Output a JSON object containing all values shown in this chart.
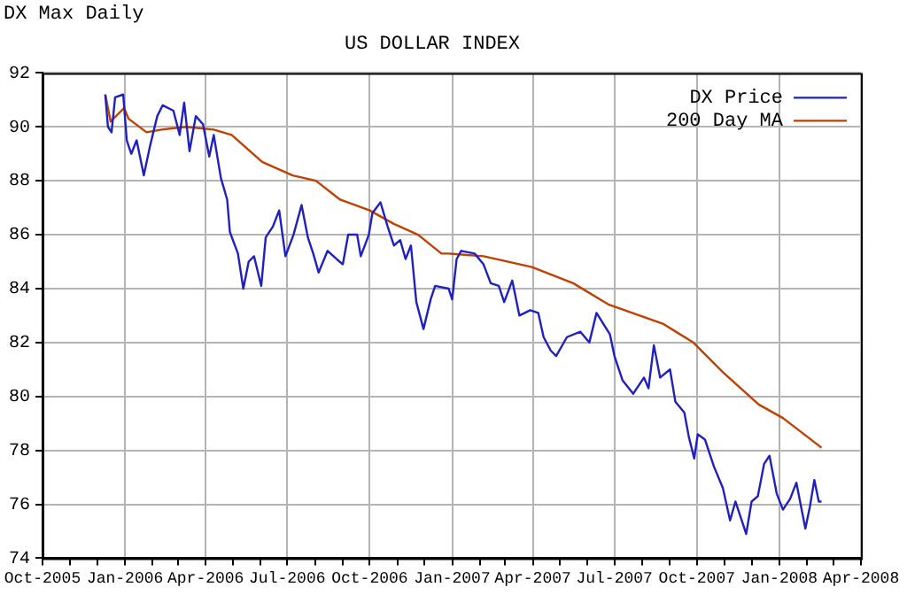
{
  "chart_data": {
    "type": "line",
    "title": "US DOLLAR INDEX",
    "annotations": [
      "DX Max Daily"
    ],
    "xlim": [
      "2005-10",
      "2008-04"
    ],
    "xticks": [
      {
        "value": "2005-10",
        "label": "Oct-2005"
      },
      {
        "value": "2005-11",
        "label": null
      },
      {
        "value": "2005-12",
        "label": null
      },
      {
        "value": "2006-01",
        "label": "Jan-2006"
      },
      {
        "value": "2006-02",
        "label": null
      },
      {
        "value": "2006-03",
        "label": null
      },
      {
        "value": "2006-04",
        "label": "Apr-2006"
      },
      {
        "value": "2006-05",
        "label": null
      },
      {
        "value": "2006-06",
        "label": null
      },
      {
        "value": "2006-07",
        "label": "Jul-2006"
      },
      {
        "value": "2006-08",
        "label": null
      },
      {
        "value": "2006-09",
        "label": null
      },
      {
        "value": "2006-10",
        "label": "Oct-2006"
      },
      {
        "value": "2006-11",
        "label": null
      },
      {
        "value": "2006-12",
        "label": null
      },
      {
        "value": "2007-01",
        "label": "Jan-2007"
      },
      {
        "value": "2007-02",
        "label": null
      },
      {
        "value": "2007-03",
        "label": null
      },
      {
        "value": "2007-04",
        "label": "Apr-2007"
      },
      {
        "value": "2007-05",
        "label": null
      },
      {
        "value": "2007-06",
        "label": null
      },
      {
        "value": "2007-07",
        "label": "Jul-2007"
      },
      {
        "value": "2007-08",
        "label": null
      },
      {
        "value": "2007-09",
        "label": null
      },
      {
        "value": "2007-10",
        "label": "Oct-2007"
      },
      {
        "value": "2007-11",
        "label": null
      },
      {
        "value": "2007-12",
        "label": null
      },
      {
        "value": "2008-01",
        "label": "Jan-2008"
      },
      {
        "value": "2008-02",
        "label": null
      },
      {
        "value": "2008-03",
        "label": null
      },
      {
        "value": "2008-04",
        "label": "Apr-2008"
      }
    ],
    "ylim": [
      74,
      92
    ],
    "yticks": [
      74,
      76,
      78,
      80,
      82,
      84,
      86,
      88,
      90,
      92
    ],
    "grid": true,
    "legend": "top right",
    "marker": "none",
    "line_style": "solid",
    "series": [
      {
        "name": "DX Price",
        "color": "#2020c0",
        "x": [
          "2005-12-10",
          "2005-12-13",
          "2005-12-17",
          "2005-12-21",
          "2005-12-30",
          "2006-01-03",
          "2006-01-08",
          "2006-01-14",
          "2006-01-22",
          "2006-01-29",
          "2006-02-06",
          "2006-02-12",
          "2006-02-24",
          "2006-03-03",
          "2006-03-08",
          "2006-03-14",
          "2006-03-21",
          "2006-03-29",
          "2006-04-05",
          "2006-04-10",
          "2006-04-18",
          "2006-04-25",
          "2006-04-28",
          "2006-05-07",
          "2006-05-13",
          "2006-05-19",
          "2006-05-25",
          "2006-06-02",
          "2006-06-07",
          "2006-06-15",
          "2006-06-22",
          "2006-06-29",
          "2006-07-08",
          "2006-07-17",
          "2006-07-24",
          "2006-07-30",
          "2006-08-05",
          "2006-08-15",
          "2006-08-25",
          "2006-09-01",
          "2006-09-07",
          "2006-09-17",
          "2006-09-21",
          "2006-09-30",
          "2006-10-04",
          "2006-10-13",
          "2006-10-21",
          "2006-10-28",
          "2006-11-04",
          "2006-11-10",
          "2006-11-16",
          "2006-11-22",
          "2006-11-30",
          "2006-12-08",
          "2006-12-13",
          "2006-12-28",
          "2007-01-01",
          "2007-01-06",
          "2007-01-11",
          "2007-01-26",
          "2007-02-05",
          "2007-02-13",
          "2007-02-22",
          "2007-02-28",
          "2007-03-09",
          "2007-03-17",
          "2007-03-29",
          "2007-04-07",
          "2007-04-13",
          "2007-04-21",
          "2007-04-27",
          "2007-05-09",
          "2007-05-24",
          "2007-06-03",
          "2007-06-11",
          "2007-06-26",
          "2007-07-01",
          "2007-07-10",
          "2007-07-22",
          "2007-08-03",
          "2007-08-08",
          "2007-08-14",
          "2007-08-21",
          "2007-09-01",
          "2007-09-07",
          "2007-09-17",
          "2007-09-22",
          "2007-09-28",
          "2007-10-02",
          "2007-10-10",
          "2007-10-20",
          "2007-10-30",
          "2007-11-07",
          "2007-11-13",
          "2007-11-19",
          "2007-11-25",
          "2007-12-01",
          "2007-12-08",
          "2007-12-15",
          "2007-12-21",
          "2007-12-29",
          "2008-01-05",
          "2008-01-13",
          "2008-01-20",
          "2008-01-30",
          "2008-02-04",
          "2008-02-09",
          "2008-02-14",
          "2008-02-17"
        ],
        "values": [
          91.2,
          90.0,
          89.8,
          91.1,
          91.2,
          89.5,
          89.0,
          89.5,
          88.2,
          89.3,
          90.4,
          90.8,
          90.6,
          89.7,
          90.9,
          89.1,
          90.4,
          90.1,
          88.9,
          89.7,
          88.1,
          87.3,
          86.1,
          85.3,
          84.0,
          85.0,
          85.2,
          84.1,
          85.9,
          86.3,
          86.9,
          85.2,
          86.0,
          87.1,
          85.9,
          85.3,
          84.6,
          85.4,
          85.1,
          84.9,
          86.0,
          86.0,
          85.2,
          86.0,
          86.8,
          87.2,
          86.3,
          85.6,
          85.8,
          85.1,
          85.6,
          83.5,
          82.5,
          83.6,
          84.1,
          84.0,
          83.6,
          85.1,
          85.4,
          85.3,
          84.9,
          84.2,
          84.1,
          83.5,
          84.3,
          83.0,
          83.2,
          83.1,
          82.2,
          81.7,
          81.5,
          82.2,
          82.4,
          82.0,
          83.1,
          82.3,
          81.5,
          80.6,
          80.1,
          80.7,
          80.3,
          81.9,
          80.7,
          81.0,
          79.8,
          79.4,
          78.5,
          77.7,
          78.6,
          78.4,
          77.4,
          76.6,
          75.4,
          76.1,
          75.5,
          74.9,
          76.1,
          76.3,
          77.5,
          77.8,
          76.4,
          75.8,
          76.2,
          76.8,
          75.1,
          75.9,
          76.9,
          76.1,
          76.1
        ]
      },
      {
        "name": "200 Day MA",
        "color": "#c04000",
        "x": [
          "2005-12-10",
          "2005-12-16",
          "2005-12-31",
          "2006-01-05",
          "2006-01-25",
          "2006-02-11",
          "2006-03-10",
          "2006-04-10",
          "2006-04-30",
          "2006-06-03",
          "2006-07-07",
          "2006-08-02",
          "2006-08-29",
          "2006-10-01",
          "2006-10-28",
          "2006-11-24",
          "2006-12-20",
          "2006-12-28",
          "2007-02-05",
          "2007-03-31",
          "2007-05-16",
          "2007-06-25",
          "2007-08-24",
          "2007-09-27",
          "2007-10-30",
          "2007-12-09",
          "2008-01-05",
          "2008-02-17"
        ],
        "values": [
          91.2,
          90.2,
          90.7,
          90.3,
          89.8,
          89.9,
          90.0,
          89.9,
          89.7,
          88.7,
          88.2,
          88.0,
          87.3,
          86.9,
          86.4,
          86.0,
          85.3,
          85.3,
          85.2,
          84.8,
          84.2,
          83.4,
          82.7,
          82.0,
          80.9,
          79.7,
          79.2,
          78.1
        ]
      }
    ]
  }
}
